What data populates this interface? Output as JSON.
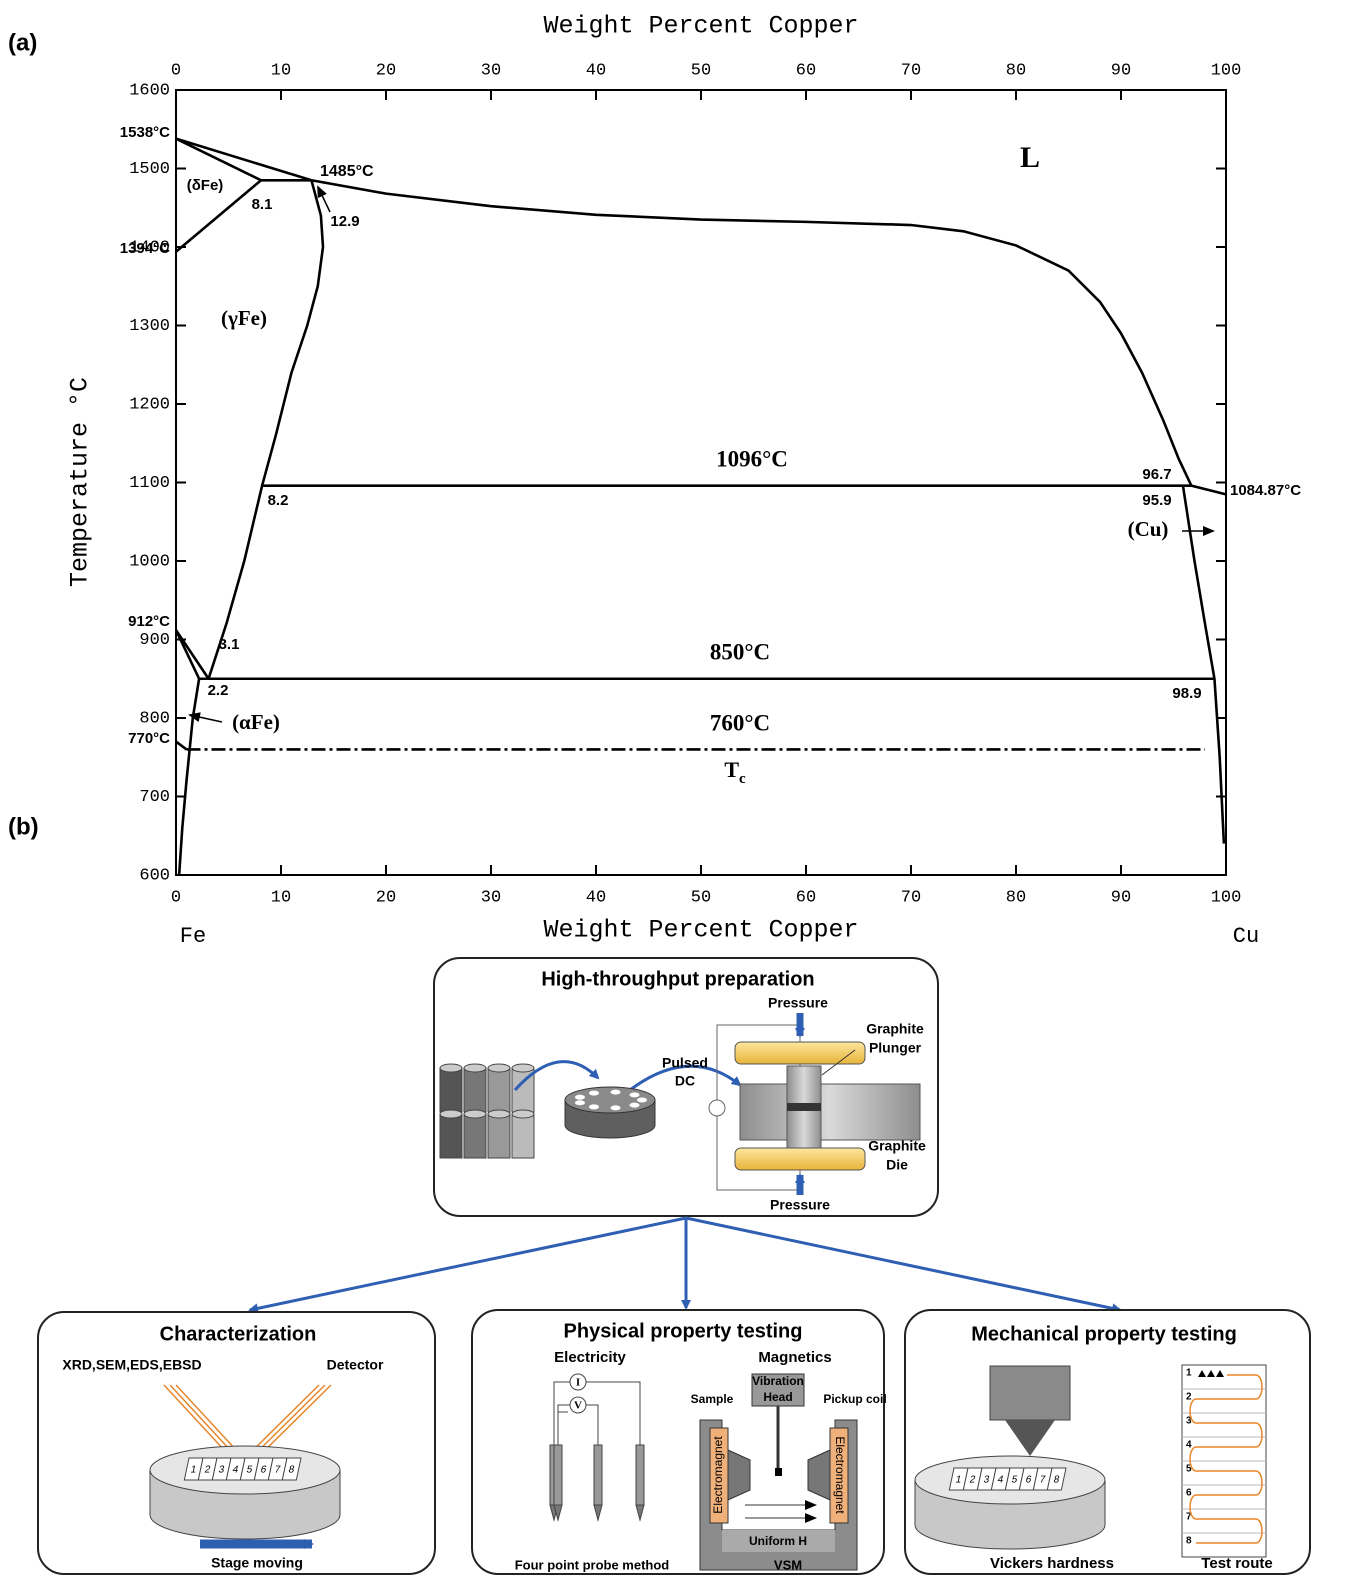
{
  "panel_labels": {
    "a": "(a)",
    "b": "(b)"
  },
  "chart_data": {
    "type": "line",
    "x_label": "Weight Percent Copper",
    "x2_label": "Weight Percent Copper",
    "y_label": "Temperature °C",
    "xlim": [
      0,
      100
    ],
    "xticks": [
      0,
      10,
      20,
      30,
      40,
      50,
      60,
      70,
      80,
      90,
      100
    ],
    "ylim": [
      600,
      1600
    ],
    "yticks": [
      600,
      700,
      800,
      900,
      1000,
      1100,
      1200,
      1300,
      1400,
      1500,
      1600
    ],
    "x_end_labels": [
      "Fe",
      "Cu"
    ],
    "annotations": [
      "L",
      "(δFe)",
      "(γFe)",
      "(αFe)",
      "(Cu)",
      "1538°C",
      "1394°C",
      "912°C",
      "770°C",
      "1485°C",
      "8.1",
      "12.9",
      "1096°C",
      "8.2",
      "96.7",
      "95.9",
      "1084.87°C",
      "850°C",
      "3.1",
      "2.2",
      "98.9",
      "760°C"
    ],
    "tc": {
      "main": "T",
      "sub": "c"
    },
    "series": [
      {
        "color": "#000000",
        "x": [
          0,
          12.9,
          20,
          30,
          40,
          50,
          60,
          70,
          75,
          80,
          85,
          88,
          90,
          92,
          94,
          95.5,
          96.7,
          100
        ],
        "values": [
          1538,
          1485,
          1468,
          1452,
          1441,
          1435,
          1432,
          1428,
          1420,
          1402,
          1370,
          1330,
          1290,
          1240,
          1180,
          1130,
          1096,
          1084.87
        ]
      },
      {
        "color": "#000000",
        "x": [
          0,
          8.1
        ],
        "values": [
          1538,
          1485
        ]
      },
      {
        "color": "#000000",
        "x": [
          8.1,
          12.9
        ],
        "values": [
          1485,
          1485
        ]
      },
      {
        "color": "#000000",
        "x": [
          0,
          8.1
        ],
        "values": [
          1394,
          1485
        ]
      },
      {
        "color": "#000000",
        "x": [
          12.9,
          13.8,
          14,
          13.5,
          12.5,
          11,
          9.5,
          8.2,
          6.5,
          4.8,
          3.1
        ],
        "values": [
          1485,
          1440,
          1400,
          1350,
          1300,
          1240,
          1160,
          1096,
          1000,
          920,
          850
        ]
      },
      {
        "color": "#000000",
        "x": [
          8.2,
          96.7
        ],
        "values": [
          1096,
          1096
        ]
      },
      {
        "color": "#000000",
        "x": [
          95.9,
          97,
          98,
          98.9,
          99.4,
          99.8
        ],
        "values": [
          1096,
          1000,
          920,
          850,
          750,
          640
        ]
      },
      {
        "color": "#000000",
        "x": [
          2.2,
          98.9
        ],
        "values": [
          850,
          850
        ]
      },
      {
        "color": "#000000",
        "x": [
          0,
          3.1
        ],
        "values": [
          912,
          850
        ]
      },
      {
        "color": "#000000",
        "x": [
          0,
          2.2
        ],
        "values": [
          912,
          850
        ]
      },
      {
        "color": "#000000",
        "x": [
          2.2,
          1.6,
          1,
          0.6,
          0.3
        ],
        "values": [
          850,
          800,
          720,
          660,
          600
        ]
      },
      {
        "color": "#000000",
        "x": [
          0,
          1
        ],
        "values": [
          770,
          760
        ]
      },
      {
        "color": "#000000",
        "dash": "dashdot",
        "x": [
          1,
          98
        ],
        "values": [
          760,
          760
        ]
      }
    ]
  },
  "diagram": {
    "preparation": {
      "title": "High-throughput preparation",
      "pressure_top": "Pressure",
      "pressure_bottom": "Pressure",
      "power": [
        "Pulsed",
        "DC"
      ],
      "plunger": [
        "Graphite",
        "Plunger"
      ],
      "die": [
        "Graphite",
        "Die"
      ]
    },
    "characterization": {
      "title": "Characterization",
      "methods": "XRD,SEM,EDS,EBSD",
      "detector": "Detector",
      "stage": "Stage moving"
    },
    "physical": {
      "title": "Physical property testing",
      "electricity": "Electricity",
      "magnetics": "Magnetics",
      "current": "I",
      "voltage": "V",
      "head": [
        "Vibration",
        "Head"
      ],
      "sample": "Sample",
      "coil": "Pickup coil",
      "magnet": "Electromagnet",
      "field": "Uniform H",
      "probe": "Four point probe method",
      "vsm": "VSM"
    },
    "mechanical": {
      "title": "Mechanical property testing",
      "hardness": "Vickers hardness",
      "route": "Test route"
    },
    "cells": [
      "1",
      "2",
      "3",
      "4",
      "5",
      "6",
      "7",
      "8"
    ]
  }
}
